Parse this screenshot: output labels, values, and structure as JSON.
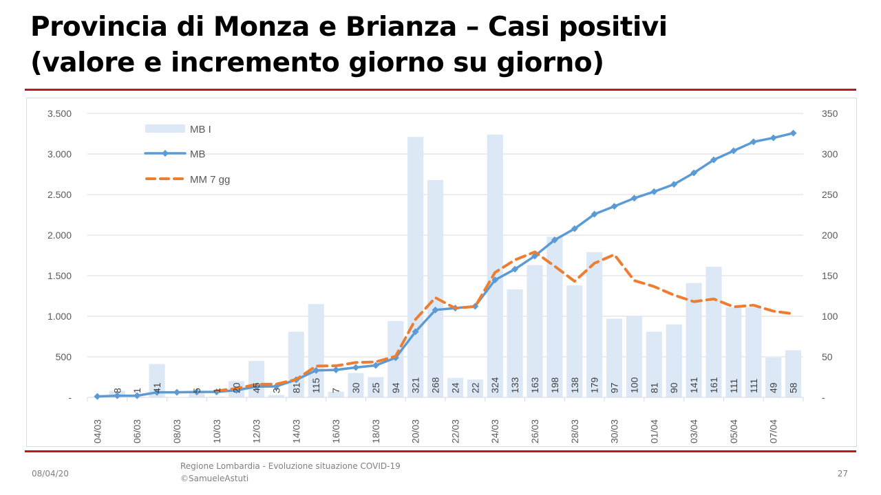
{
  "title_line1": "Provincia di Monza e Brianza – Casi positivi",
  "title_line2": "(valore e incremento giorno su giorno)",
  "footer": {
    "date": "08/04/20",
    "source_line1": "Regione Lombardia - Evoluzione situazione COVID-19",
    "source_line2": "©SamueleAstuti",
    "page": "27"
  },
  "colors": {
    "bars": "#dce8f5",
    "line": "#5b9bd5",
    "avg": "#ed7d31",
    "rule": "#c0161c"
  },
  "chart_data": {
    "type": "bar+line",
    "categories": [
      "04/03",
      "05/03",
      "06/03",
      "07/03",
      "08/03",
      "09/03",
      "10/03",
      "11/03",
      "12/03",
      "13/03",
      "14/03",
      "15/03",
      "16/03",
      "17/03",
      "18/03",
      "19/03",
      "20/03",
      "21/03",
      "22/03",
      "23/03",
      "24/03",
      "25/03",
      "26/03",
      "27/03",
      "28/03",
      "29/03",
      "30/03",
      "31/03",
      "01/04",
      "02/04",
      "03/04",
      "04/04",
      "05/04",
      "06/04",
      "07/04",
      "08/04"
    ],
    "tick_labels": [
      "04/03",
      "06/03",
      "08/03",
      "10/03",
      "12/03",
      "14/03",
      "16/03",
      "18/03",
      "20/03",
      "22/03",
      "24/03",
      "26/03",
      "28/03",
      "30/03",
      "01/04",
      "03/04",
      "05/04",
      "07/04"
    ],
    "series": [
      {
        "name": "MB I",
        "type": "bar",
        "axis": "right",
        "values": [
          null,
          8,
          1,
          41,
          0,
          5,
          1,
          20,
          45,
          3,
          81,
          115,
          7,
          30,
          25,
          94,
          321,
          268,
          24,
          22,
          324,
          133,
          163,
          198,
          138,
          179,
          97,
          100,
          81,
          90,
          141,
          161,
          111,
          111,
          49,
          58
        ],
        "labels": [
          "",
          "8",
          "1",
          "41",
          "",
          "5",
          "1",
          "20",
          "45",
          "3",
          "81",
          "115",
          "7",
          "30",
          "25",
          "94",
          "321",
          "268",
          "24",
          "22",
          "324",
          "133",
          "163",
          "198",
          "138",
          "179",
          "97",
          "100",
          "81",
          "90",
          "141",
          "161",
          "111",
          "111",
          "49",
          "58"
        ]
      },
      {
        "name": "MB",
        "type": "line",
        "axis": "left",
        "values": [
          12,
          20,
          21,
          62,
          62,
          67,
          68,
          88,
          133,
          136,
          217,
          332,
          339,
          369,
          394,
          488,
          809,
          1077,
          1101,
          1123,
          1447,
          1580,
          1743,
          1941,
          2079,
          2258,
          2355,
          2455,
          2536,
          2626,
          2767,
          2928,
          3039,
          3150,
          3199,
          3257
        ]
      },
      {
        "name": "MM 7 gg",
        "type": "line",
        "style": "dashed",
        "axis": "right",
        "values": [
          null,
          null,
          null,
          null,
          null,
          null,
          8.0,
          10.9,
          16.1,
          16.4,
          22.1,
          38.6,
          38.9,
          43.0,
          43.7,
          50.7,
          96.1,
          122.9,
          109.9,
          112.0,
          154.0,
          169.4,
          179.3,
          161.7,
          143.1,
          165.3,
          176.0,
          144.0,
          136.6,
          126.1,
          118.0,
          121.3,
          111.6,
          113.6,
          106.3,
          103.0
        ]
      }
    ],
    "y_left": {
      "ylim": [
        0,
        3500
      ],
      "ticks": [
        "-",
        "500",
        "1.000",
        "1.500",
        "2.000",
        "2.500",
        "3.000",
        "3.500"
      ]
    },
    "y_right": {
      "ylim": [
        0,
        350
      ],
      "ticks": [
        "-",
        "50",
        "100",
        "150",
        "200",
        "250",
        "300",
        "350"
      ]
    },
    "legend": "top-left",
    "grid": true
  }
}
